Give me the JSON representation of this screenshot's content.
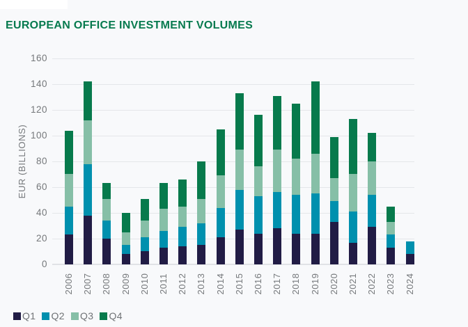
{
  "page": {
    "background": "#f8f9fb"
  },
  "chart_data": {
    "type": "bar",
    "stacked": true,
    "title": "EUROPEAN OFFICE INVESTMENT VOLUMES",
    "title_color": "#067a4e",
    "xlabel": "",
    "ylabel": "EUR (BILLIONS)",
    "ylim": [
      0,
      160
    ],
    "ytick_step": 20,
    "yticks": [
      0,
      20,
      40,
      60,
      80,
      100,
      120,
      140,
      160
    ],
    "grid": true,
    "legend_position": "bottom-left",
    "categories": [
      "2006",
      "2007",
      "2008",
      "2009",
      "2010",
      "2011",
      "2012",
      "2013",
      "2014",
      "2015",
      "2016",
      "2017",
      "2018",
      "2019",
      "2020",
      "2021",
      "2022",
      "2023",
      "2024"
    ],
    "series": [
      {
        "name": "Q1",
        "color": "#211c45",
        "values": [
          23,
          38,
          20,
          8,
          10,
          13,
          14,
          15,
          21,
          27,
          24,
          28,
          24,
          24,
          33,
          17,
          29,
          13,
          8
        ]
      },
      {
        "name": "Q2",
        "color": "#0090ae",
        "values": [
          22,
          40,
          14,
          7,
          11,
          13,
          15,
          17,
          23,
          31,
          29,
          28,
          30,
          31,
          16,
          24,
          25,
          10,
          10
        ]
      },
      {
        "name": "Q3",
        "color": "#86bfa7",
        "values": [
          25,
          34,
          17,
          10,
          13,
          17,
          16,
          19,
          25,
          31,
          23,
          33,
          28,
          31,
          18,
          29,
          26,
          10,
          0
        ]
      },
      {
        "name": "Q4",
        "color": "#077a4c",
        "values": [
          34,
          30,
          12,
          15,
          17,
          20,
          21,
          29,
          36,
          44,
          40,
          42,
          43,
          56,
          32,
          43,
          22,
          12,
          0
        ]
      }
    ],
    "axis_text_color": "#75787b",
    "grid_color": "#e4e6e9"
  }
}
